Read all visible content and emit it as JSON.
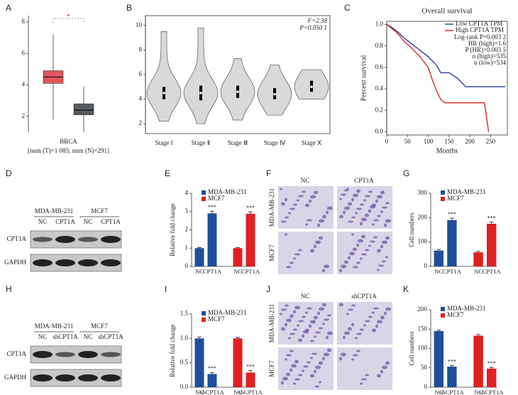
{
  "figure": {
    "panel_letters": [
      "A",
      "B",
      "C",
      "D",
      "E",
      "F",
      "G",
      "H",
      "I",
      "J",
      "K"
    ],
    "blots": [
      {
        "groups": [
          "MDA-MB-231",
          "MCF7"
        ],
        "lanes": [
          "NC",
          "CPT1A",
          "NC",
          "CPT1A"
        ],
        "rows": [
          "CPT1A",
          "GAPDH"
        ]
      },
      {
        "groups": [
          "MDA-MB-231",
          "MCF7"
        ],
        "lanes": [
          "NC",
          "shCPT1A",
          "NC",
          "shCPT1A"
        ],
        "rows": [
          "CPT1A",
          "GAPDH"
        ]
      }
    ],
    "images": [
      {
        "columns": [
          "NC",
          "CPT1A"
        ],
        "rows": [
          "MDA-MB-231",
          "MCF7"
        ]
      },
      {
        "columns": [
          "NC",
          "shCPT1A"
        ],
        "rows": [
          "MDA-MB-231",
          "MCF7"
        ]
      }
    ]
  },
  "chart_data": [
    {
      "type": "box",
      "xlabel": "BRCA",
      "subtitle": "[num (T)=1 085; num (N)=291]",
      "annotation": "*",
      "ylim": [
        1,
        8.4
      ],
      "yticks": [
        2,
        4,
        6,
        8
      ],
      "boxes": [
        {
          "color": "#e0575f",
          "min": 1.8,
          "q1": 4.1,
          "median": 4.5,
          "q3": 4.9,
          "max": 7.2
        },
        {
          "color": "#555a60",
          "min": 1.0,
          "q1": 2.1,
          "median": 2.4,
          "q3": 2.8,
          "max": 3.9
        }
      ]
    },
    {
      "type": "violin",
      "annotations": [
        "F=2.38",
        "P=0.050 1"
      ],
      "categories": [
        "Stage Ⅰ",
        "Stage Ⅱ",
        "Stage Ⅲ",
        "Stage Ⅳ",
        "Stage Ⅹ"
      ],
      "min": [
        2.2,
        2.0,
        2.3,
        2.7,
        4.0
      ],
      "q1": [
        4.0,
        3.9,
        4.1,
        4.0,
        4.6
      ],
      "median": [
        4.5,
        4.5,
        4.6,
        4.4,
        5.0
      ],
      "q3": [
        5.0,
        5.1,
        5.1,
        4.9,
        5.5
      ],
      "max": [
        9.5,
        9.8,
        7.3,
        6.8,
        6.4
      ],
      "color": "#d9d9d9",
      "ylim": [
        1.2,
        10.8
      ],
      "yticks": [
        2,
        4,
        6,
        8,
        10
      ]
    },
    {
      "type": "line",
      "title": "Overall survival",
      "xlabel": "Months",
      "ylabel": "Percent survival",
      "annotations": [
        "Log-rank P=0.003 2",
        "HR (high)=1.6",
        "P (HR)=0.003 5",
        "n (high)=535",
        "n (low)=534"
      ],
      "xlim": [
        0,
        290
      ],
      "xticks": [
        0,
        50,
        100,
        150,
        200,
        250
      ],
      "ylim": [
        -0.03,
        1.03
      ],
      "yticks": [
        {
          "value": 0,
          "label": "0.0"
        },
        0.2,
        0.4,
        0.6,
        0.8,
        {
          "value": 1,
          "label": "1.0"
        }
      ],
      "legend": "top-right",
      "series": [
        {
          "name": "Low CPT1A TPM",
          "color": "#2b3f99",
          "x": [
            0,
            10,
            20,
            30,
            40,
            60,
            80,
            100,
            120,
            130,
            150,
            170,
            190,
            210,
            230,
            285
          ],
          "y": [
            1,
            0.98,
            0.95,
            0.92,
            0.88,
            0.82,
            0.76,
            0.7,
            0.62,
            0.55,
            0.55,
            0.5,
            0.42,
            0.42,
            0.42,
            0.42
          ]
        },
        {
          "name": "High CPT1A TPM",
          "color": "#d42a2a",
          "x": [
            0,
            10,
            20,
            30,
            40,
            60,
            80,
            100,
            110,
            120,
            130,
            140,
            160,
            200,
            235,
            245
          ],
          "y": [
            1,
            0.97,
            0.94,
            0.9,
            0.85,
            0.78,
            0.7,
            0.6,
            0.48,
            0.38,
            0.3,
            0.27,
            0.27,
            0.27,
            0.27,
            0
          ]
        }
      ]
    },
    {
      "type": "bar",
      "ylabel": "Relative fold change",
      "categories": [
        "NC",
        "CPT1A"
      ],
      "ylim": [
        0,
        4
      ],
      "yticks": [
        0,
        1,
        2,
        3,
        4
      ],
      "series": [
        {
          "name": "MDA-MB-231",
          "color": "#1f4e9c",
          "values": [
            1.0,
            2.9
          ],
          "errors": [
            0.03,
            0.12
          ],
          "significance": "***"
        },
        {
          "name": "MCF7",
          "color": "#e02020",
          "values": [
            1.0,
            2.88
          ],
          "errors": [
            0.03,
            0.1
          ],
          "significance": "***"
        }
      ]
    },
    {
      "type": "bar",
      "ylabel": "Cell numbers",
      "categories": [
        "NC",
        "CPT1A"
      ],
      "ylim": [
        0,
        300
      ],
      "yticks": [
        0,
        100,
        200,
        300
      ],
      "series": [
        {
          "name": "MDA-MB-231",
          "color": "#1f4e9c",
          "values": [
            65,
            190
          ],
          "errors": [
            5,
            8
          ],
          "significance": "***"
        },
        {
          "name": "MCF7",
          "color": "#e02020",
          "values": [
            58,
            175
          ],
          "errors": [
            4,
            7
          ],
          "significance": "***"
        }
      ]
    },
    {
      "type": "bar",
      "ylabel": "Relative fold change",
      "categories": [
        "NC",
        "shCPT1A"
      ],
      "ylim": [
        0,
        1.5
      ],
      "yticks": [
        {
          "value": 0,
          "label": "0.0"
        },
        0.5,
        {
          "value": 1,
          "label": "1.0"
        },
        1.5
      ],
      "series": [
        {
          "name": "MDA-MB-231",
          "color": "#1f4e9c",
          "values": [
            1.0,
            0.27
          ],
          "errors": [
            0.03,
            0.03
          ],
          "significance": "***"
        },
        {
          "name": "MCF7",
          "color": "#e02020",
          "values": [
            1.0,
            0.3
          ],
          "errors": [
            0.02,
            0.04
          ],
          "significance": "***"
        }
      ]
    },
    {
      "type": "bar",
      "ylabel": "Cell numbers",
      "categories": [
        "NC",
        "shCPT1A"
      ],
      "ylim": [
        0,
        200
      ],
      "yticks": [
        0,
        50,
        100,
        150,
        200
      ],
      "series": [
        {
          "name": "MDA-MB-231",
          "color": "#1f4e9c",
          "values": [
            145,
            53
          ],
          "errors": [
            3,
            3
          ],
          "significance": "***"
        },
        {
          "name": "MCF7",
          "color": "#e02020",
          "values": [
            133,
            48
          ],
          "errors": [
            3,
            3
          ],
          "significance": "***"
        }
      ]
    }
  ]
}
